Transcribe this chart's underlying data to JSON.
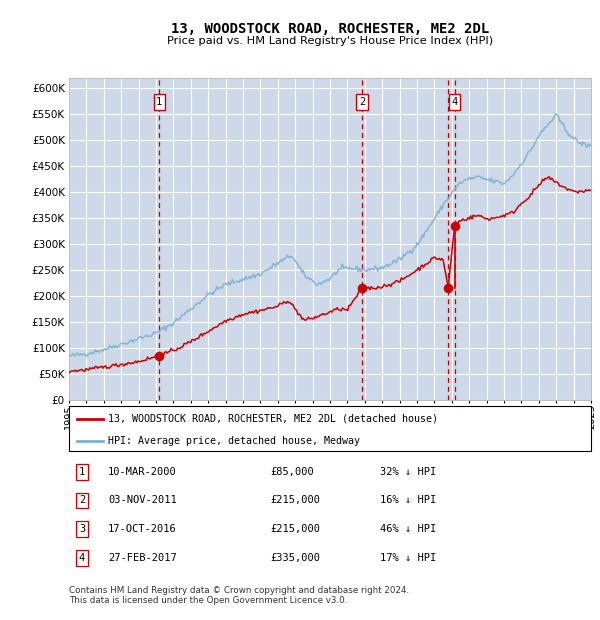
{
  "title": "13, WOODSTOCK ROAD, ROCHESTER, ME2 2DL",
  "subtitle": "Price paid vs. HM Land Registry's House Price Index (HPI)",
  "footnote": "Contains HM Land Registry data © Crown copyright and database right 2024.\nThis data is licensed under the Open Government Licence v3.0.",
  "legend_line1": "13, WOODSTOCK ROAD, ROCHESTER, ME2 2DL (detached house)",
  "legend_line2": "HPI: Average price, detached house, Medway",
  "transactions": [
    {
      "num": 1,
      "date": "10-MAR-2000",
      "price": 85000,
      "pct": "32%",
      "year": 2000.19
    },
    {
      "num": 2,
      "date": "03-NOV-2011",
      "price": 215000,
      "pct": "16%",
      "year": 2011.84
    },
    {
      "num": 3,
      "date": "17-OCT-2016",
      "price": 215000,
      "pct": "46%",
      "year": 2016.79
    },
    {
      "num": 4,
      "date": "27-FEB-2017",
      "price": 335000,
      "pct": "17%",
      "year": 2017.16
    }
  ],
  "bg_color": "#cdd9e8",
  "grid_color": "#ffffff",
  "hpi_color": "#7ab0d4",
  "price_color": "#cc0000",
  "dashed_color": "#cc0000",
  "ylim": [
    0,
    620000
  ],
  "yticks": [
    0,
    50000,
    100000,
    150000,
    200000,
    250000,
    300000,
    350000,
    400000,
    450000,
    500000,
    550000,
    600000
  ],
  "year_start": 1995,
  "year_end": 2025,
  "hpi_anchors_years": [
    1995.0,
    1996.0,
    1997.0,
    1998.0,
    1999.0,
    2000.0,
    2001.0,
    2002.0,
    2003.0,
    2004.0,
    2005.0,
    2006.0,
    2007.0,
    2007.8,
    2008.5,
    2009.3,
    2010.0,
    2010.5,
    2011.0,
    2011.5,
    2012.0,
    2013.0,
    2014.0,
    2015.0,
    2016.0,
    2016.5,
    2017.0,
    2017.5,
    2018.0,
    2018.5,
    2019.0,
    2019.5,
    2020.0,
    2020.5,
    2021.0,
    2021.5,
    2022.0,
    2022.5,
    2022.8,
    2023.0,
    2023.5,
    2024.0,
    2024.5,
    2025.0
  ],
  "hpi_anchors_prices": [
    84000,
    89000,
    97000,
    107000,
    118000,
    128000,
    148000,
    175000,
    202000,
    222000,
    232000,
    242000,
    263000,
    278000,
    240000,
    222000,
    233000,
    250000,
    253000,
    252000,
    250000,
    254000,
    270000,
    298000,
    348000,
    375000,
    398000,
    418000,
    425000,
    428000,
    424000,
    420000,
    416000,
    432000,
    455000,
    478000,
    508000,
    528000,
    540000,
    548000,
    522000,
    502000,
    492000,
    488000
  ],
  "price_anchors_years": [
    1995.0,
    1996.0,
    1997.0,
    1998.0,
    1999.0,
    2000.19,
    2001.0,
    2002.0,
    2003.0,
    2004.0,
    2005.0,
    2006.0,
    2007.0,
    2007.6,
    2008.5,
    2009.0,
    2009.5,
    2010.0,
    2010.5,
    2011.0,
    2011.84,
    2012.0,
    2012.5,
    2013.0,
    2014.0,
    2015.0,
    2016.0,
    2016.5,
    2016.79,
    2017.16,
    2017.5,
    2018.0,
    2018.5,
    2019.0,
    2019.5,
    2020.0,
    2020.5,
    2021.0,
    2021.5,
    2022.0,
    2022.5,
    2023.0,
    2023.5,
    2024.0,
    2025.0
  ],
  "price_anchors_prices": [
    55000,
    58000,
    63000,
    68000,
    74000,
    85000,
    95000,
    112000,
    132000,
    152000,
    165000,
    172000,
    180000,
    192000,
    153000,
    157000,
    163000,
    169000,
    175000,
    173000,
    215000,
    215000,
    215000,
    218000,
    228000,
    250000,
    273000,
    270000,
    215000,
    335000,
    345000,
    350000,
    355000,
    348000,
    350000,
    355000,
    360000,
    378000,
    393000,
    413000,
    428000,
    418000,
    408000,
    400000,
    403000
  ]
}
